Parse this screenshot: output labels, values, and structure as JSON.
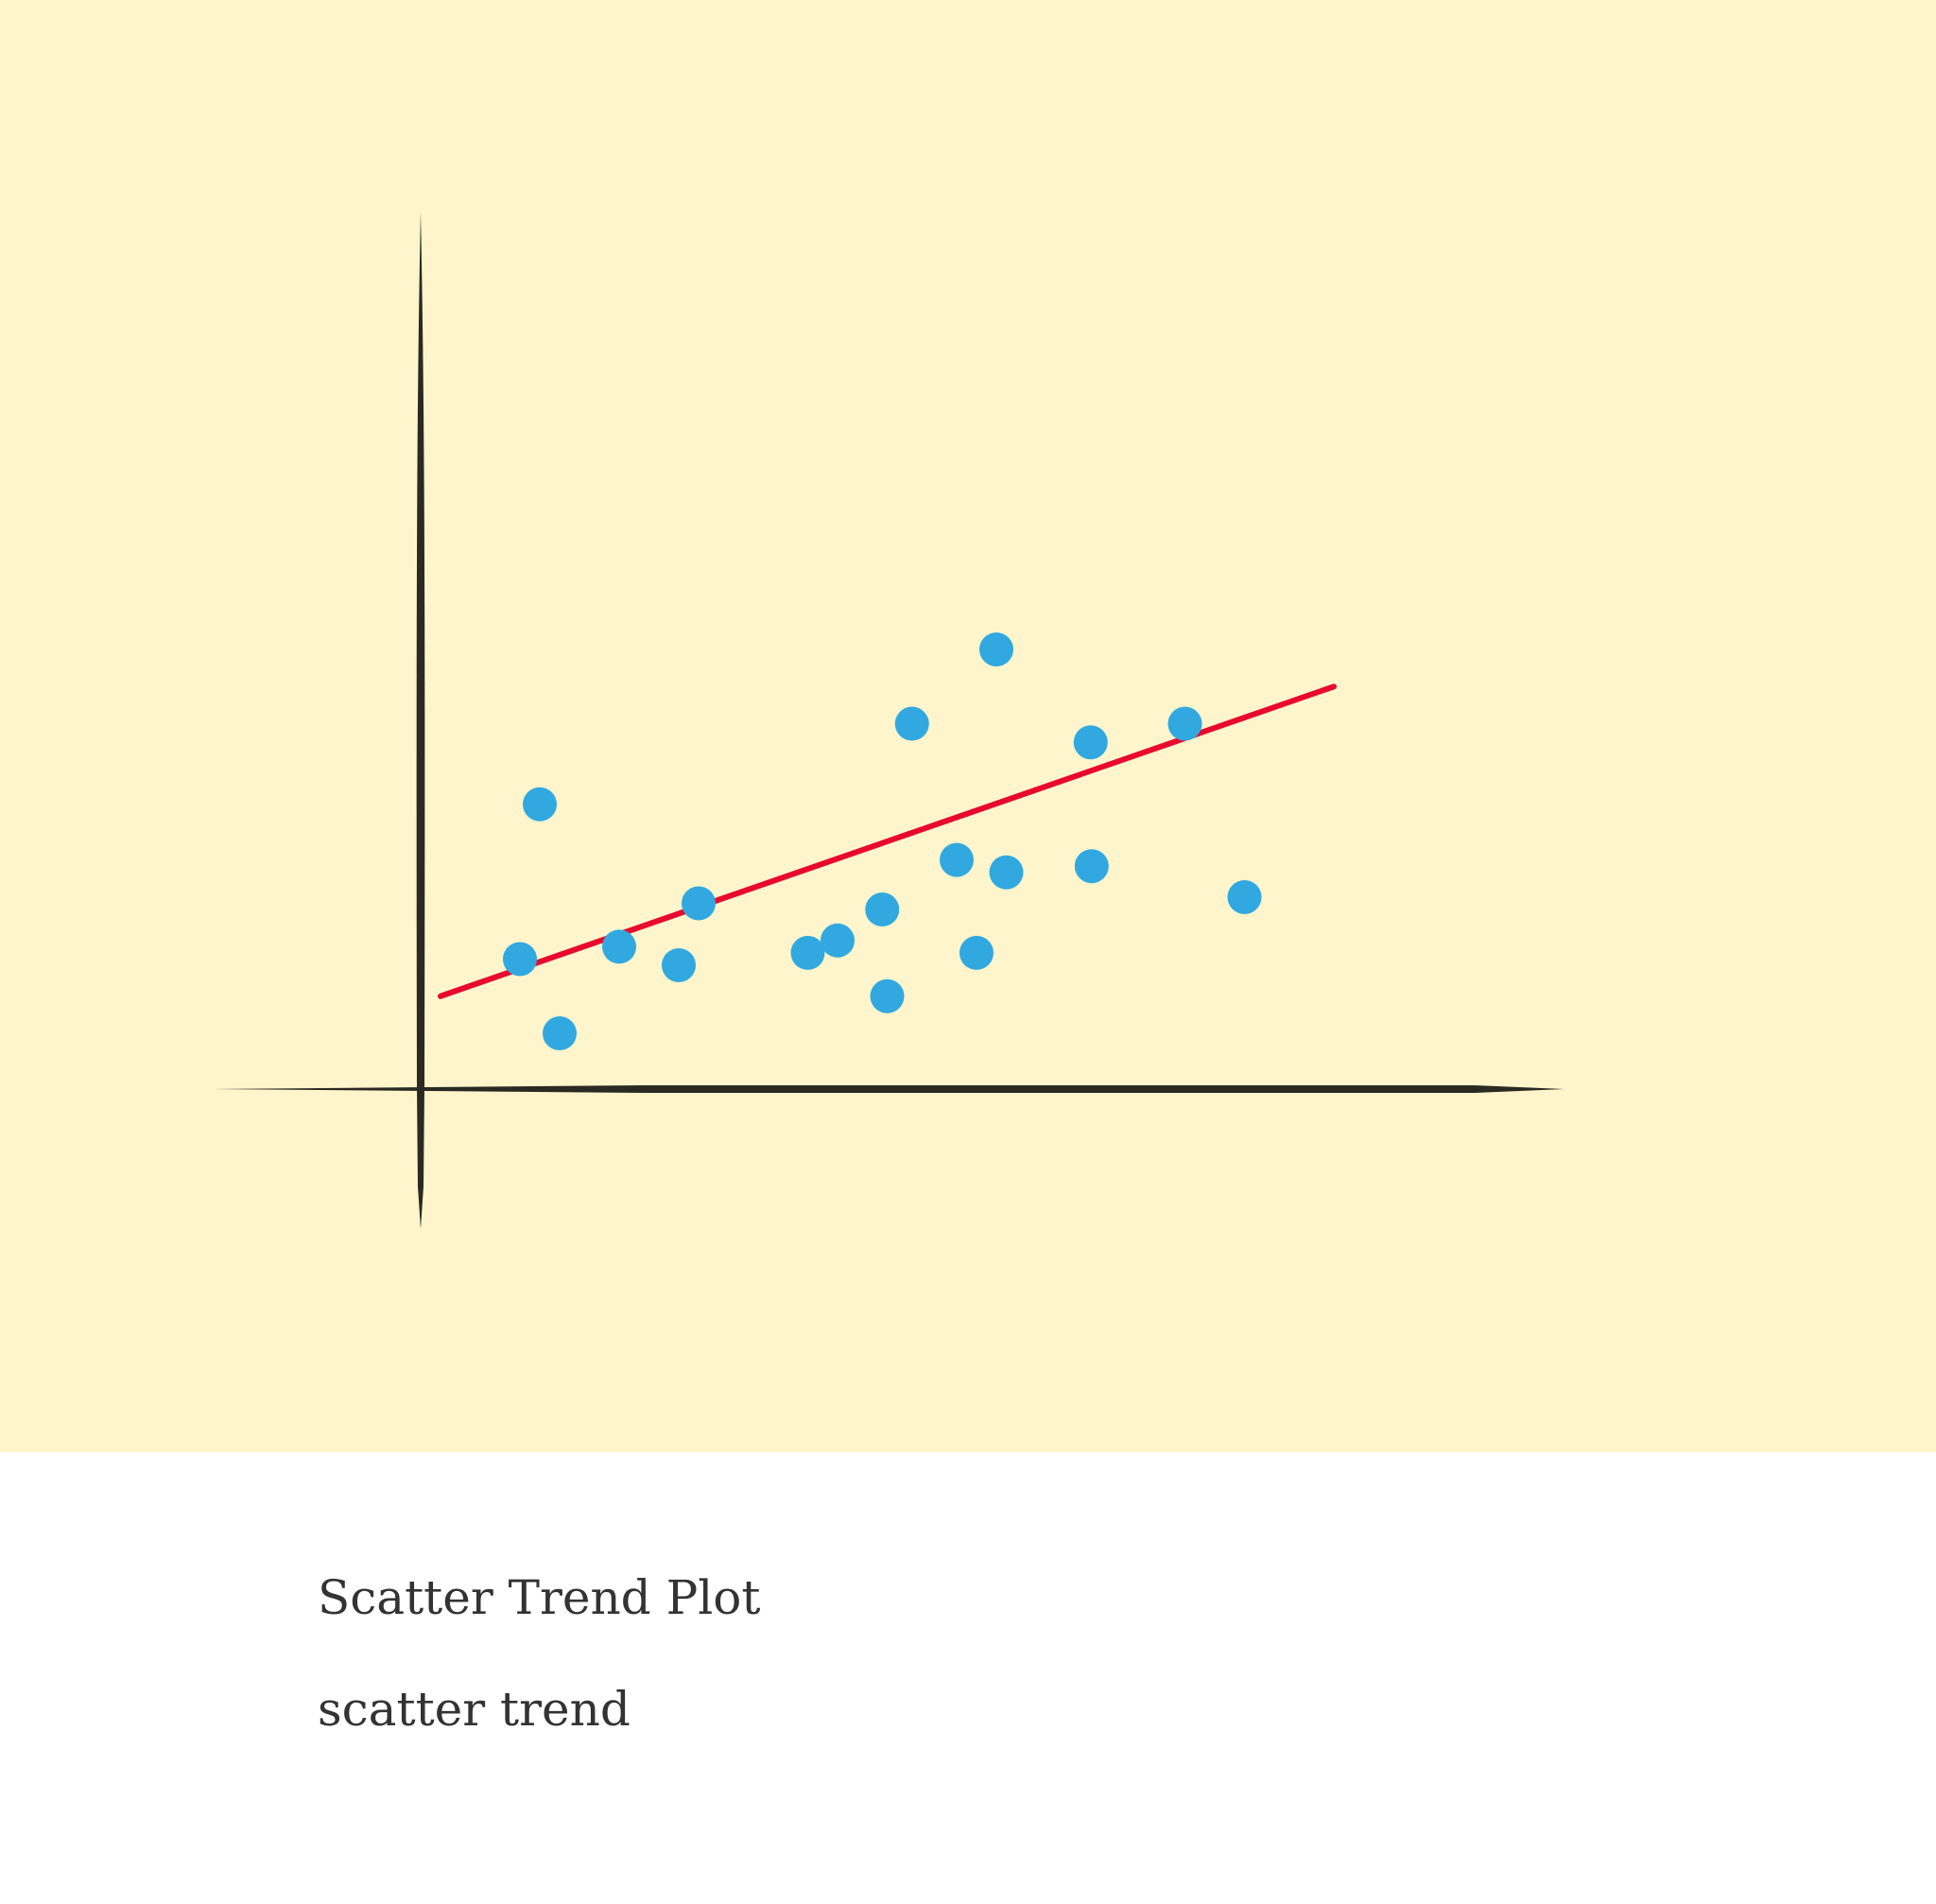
{
  "colors": {
    "background": "#fef5cc",
    "axis": "#2b2a22",
    "points": "#31a9e0",
    "trend": "#e8092e",
    "caption_text": "#333333"
  },
  "chart_data": {
    "type": "scatter",
    "title": "",
    "xlabel": "",
    "ylabel": "",
    "xlim": [
      0,
      10
    ],
    "ylim": [
      0,
      10
    ],
    "grid": false,
    "legend": "none",
    "series": [
      {
        "x": [
          1.0,
          1.2,
          1.4,
          2.0,
          2.6,
          2.8,
          3.9,
          4.2,
          4.65,
          4.7,
          4.95,
          5.4,
          5.6,
          5.8,
          5.9,
          6.75,
          6.76,
          7.7,
          8.3
        ],
        "y": [
          2.1,
          4.6,
          0.9,
          2.3,
          2.0,
          3.0,
          2.2,
          2.4,
          2.9,
          1.5,
          5.9,
          3.7,
          2.2,
          7.1,
          3.5,
          5.6,
          3.6,
          5.9,
          3.1
        ]
      }
    ],
    "trendline": {
      "x": [
        0.2,
        9.2
      ],
      "y": [
        1.5,
        6.5
      ]
    }
  },
  "caption": {
    "title": "Scatter Trend Plot",
    "subtitle": "scatter trend"
  }
}
